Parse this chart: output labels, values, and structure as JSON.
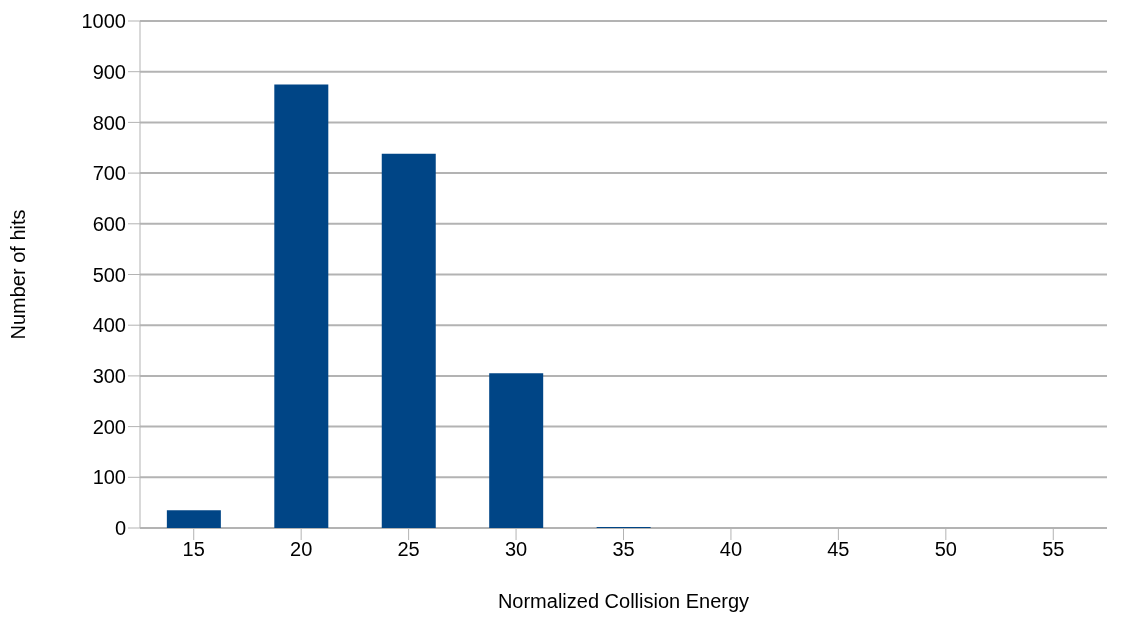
{
  "chart_data": {
    "type": "bar",
    "xlabel": "Normalized Collision Energy",
    "ylabel": "Number of hits",
    "categories": [
      "15",
      "20",
      "25",
      "30",
      "35",
      "40",
      "45",
      "50",
      "55"
    ],
    "values": [
      35,
      875,
      738,
      305,
      2,
      0,
      0,
      0,
      0
    ],
    "color": "#004586",
    "ylim": [
      0,
      1000
    ],
    "yticks": [
      0,
      100,
      200,
      300,
      400,
      500,
      600,
      700,
      800,
      900,
      1000
    ],
    "grid": "y"
  }
}
